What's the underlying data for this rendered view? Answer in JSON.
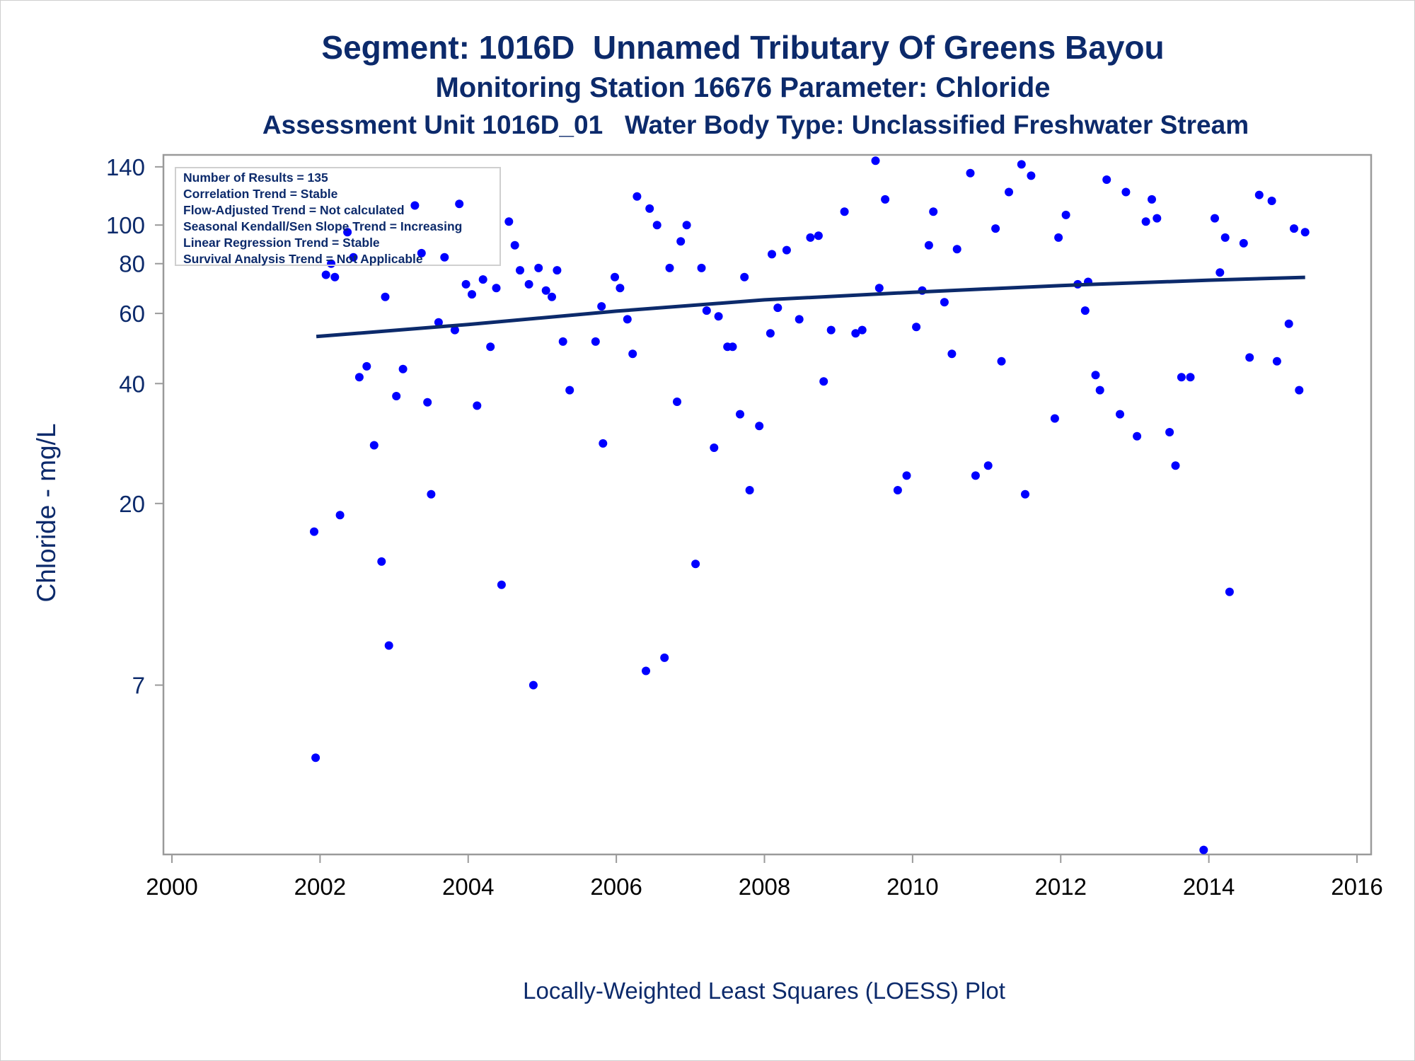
{
  "titles": {
    "line1": "Segment: 1016D  Unnamed Tributary Of Greens Bayou",
    "line2": "Monitoring Station 16676 Parameter: Chloride",
    "line3": "Assessment Unit 1016D_01   Water Body Type: Unclassified Freshwater Stream"
  },
  "stats": [
    "Number of Results = 135",
    "Correlation Trend = Stable",
    "Flow-Adjusted Trend = Not calculated",
    "Seasonal Kendall/Sen Slope Trend = Increasing",
    "Linear Regression Trend = Stable",
    "Survival Analysis Trend = Not Applicable"
  ],
  "footnote": "Locally-Weighted Least Squares (LOESS) Plot",
  "colors": {
    "text": "#0c2a6b",
    "points": "#0000ff",
    "trend": "#0c2a6b",
    "frame": "#9a9a9a"
  },
  "chart_data": {
    "type": "scatter",
    "title": "Segment: 1016D  Unnamed Tributary Of Greens Bayou",
    "xlabel": "",
    "ylabel": "Chloride - mg/L",
    "y_scale": "log",
    "xlim": [
      2000,
      2016.2
    ],
    "ylim": [
      2.63,
      150
    ],
    "x_ticks": [
      2000,
      2002,
      2004,
      2006,
      2008,
      2010,
      2012,
      2014,
      2016
    ],
    "y_ticks": [
      7,
      20,
      40,
      60,
      80,
      100,
      140
    ],
    "grid": false,
    "points": [
      [
        2001.92,
        17.0
      ],
      [
        2001.94,
        4.6
      ],
      [
        2002.08,
        75
      ],
      [
        2002.15,
        80
      ],
      [
        2002.2,
        74
      ],
      [
        2002.27,
        18.7
      ],
      [
        2002.37,
        96
      ],
      [
        2002.45,
        83
      ],
      [
        2002.53,
        41.5
      ],
      [
        2002.63,
        44.2
      ],
      [
        2002.73,
        28
      ],
      [
        2002.83,
        14.3
      ],
      [
        2002.88,
        66
      ],
      [
        2002.93,
        8.8
      ],
      [
        2003.03,
        37.2
      ],
      [
        2003.12,
        43.5
      ],
      [
        2003.28,
        112
      ],
      [
        2003.37,
        85
      ],
      [
        2003.45,
        35.9
      ],
      [
        2003.5,
        21.1
      ],
      [
        2003.6,
        57
      ],
      [
        2003.68,
        83
      ],
      [
        2003.82,
        54.5
      ],
      [
        2003.88,
        113
      ],
      [
        2003.97,
        71
      ],
      [
        2004.05,
        67
      ],
      [
        2004.12,
        35.2
      ],
      [
        2004.2,
        73
      ],
      [
        2004.3,
        49.5
      ],
      [
        2004.38,
        69.5
      ],
      [
        2004.45,
        12.5
      ],
      [
        2004.55,
        102
      ],
      [
        2004.63,
        89
      ],
      [
        2004.7,
        77
      ],
      [
        2004.82,
        71
      ],
      [
        2004.88,
        7.0
      ],
      [
        2004.95,
        78
      ],
      [
        2005.05,
        68.5
      ],
      [
        2005.13,
        66
      ],
      [
        2005.2,
        77
      ],
      [
        2005.28,
        51
      ],
      [
        2005.37,
        38.5
      ],
      [
        2005.72,
        51
      ],
      [
        2005.82,
        28.3
      ],
      [
        2005.8,
        62.5
      ],
      [
        2005.98,
        74
      ],
      [
        2006.05,
        69.5
      ],
      [
        2006.15,
        58
      ],
      [
        2006.22,
        47.5
      ],
      [
        2006.28,
        118
      ],
      [
        2006.4,
        7.6
      ],
      [
        2006.45,
        110
      ],
      [
        2006.55,
        100
      ],
      [
        2006.65,
        8.2
      ],
      [
        2006.72,
        78
      ],
      [
        2006.82,
        36
      ],
      [
        2006.87,
        91
      ],
      [
        2006.95,
        100
      ],
      [
        2007.07,
        14.1
      ],
      [
        2007.15,
        78
      ],
      [
        2007.22,
        61
      ],
      [
        2007.32,
        27.6
      ],
      [
        2007.38,
        59
      ],
      [
        2007.5,
        49.5
      ],
      [
        2007.57,
        49.5
      ],
      [
        2007.67,
        33.5
      ],
      [
        2007.73,
        74
      ],
      [
        2007.8,
        21.6
      ],
      [
        2007.93,
        31.3
      ],
      [
        2008.08,
        53.5
      ],
      [
        2008.1,
        84.5
      ],
      [
        2008.18,
        62
      ],
      [
        2008.3,
        86.5
      ],
      [
        2008.47,
        58
      ],
      [
        2008.62,
        93
      ],
      [
        2008.73,
        94
      ],
      [
        2008.8,
        40.5
      ],
      [
        2008.9,
        54.5
      ],
      [
        2009.08,
        108
      ],
      [
        2009.23,
        53.5
      ],
      [
        2009.32,
        54.5
      ],
      [
        2009.5,
        145
      ],
      [
        2009.55,
        69.5
      ],
      [
        2009.63,
        116
      ],
      [
        2009.8,
        21.6
      ],
      [
        2009.92,
        23.5
      ],
      [
        2010.05,
        55.5
      ],
      [
        2010.13,
        68.5
      ],
      [
        2010.22,
        89
      ],
      [
        2010.28,
        108
      ],
      [
        2010.43,
        64
      ],
      [
        2010.53,
        47.5
      ],
      [
        2010.6,
        87
      ],
      [
        2010.78,
        135
      ],
      [
        2010.85,
        23.5
      ],
      [
        2011.02,
        24.9
      ],
      [
        2011.12,
        98
      ],
      [
        2011.2,
        45.5
      ],
      [
        2011.3,
        121
      ],
      [
        2011.47,
        142
      ],
      [
        2011.52,
        21.1
      ],
      [
        2011.6,
        133
      ],
      [
        2011.92,
        32.7
      ],
      [
        2011.97,
        93
      ],
      [
        2012.07,
        106
      ],
      [
        2012.23,
        71
      ],
      [
        2012.33,
        61
      ],
      [
        2012.37,
        72
      ],
      [
        2012.47,
        42
      ],
      [
        2012.53,
        38.5
      ],
      [
        2012.62,
        130
      ],
      [
        2012.8,
        33.5
      ],
      [
        2012.88,
        121
      ],
      [
        2013.03,
        29.5
      ],
      [
        2013.15,
        102
      ],
      [
        2013.23,
        116
      ],
      [
        2013.3,
        104
      ],
      [
        2013.47,
        30.2
      ],
      [
        2013.55,
        24.9
      ],
      [
        2013.63,
        41.5
      ],
      [
        2013.75,
        41.5
      ],
      [
        2013.93,
        2.7
      ],
      [
        2014.08,
        104
      ],
      [
        2014.15,
        76
      ],
      [
        2014.22,
        93
      ],
      [
        2014.28,
        12.0
      ],
      [
        2014.47,
        90
      ],
      [
        2014.55,
        46.5
      ],
      [
        2014.68,
        119
      ],
      [
        2014.85,
        115
      ],
      [
        2014.92,
        45.5
      ],
      [
        2015.08,
        56.5
      ],
      [
        2015.15,
        98
      ],
      [
        2015.22,
        38.5
      ],
      [
        2015.3,
        96
      ]
    ],
    "trend": [
      [
        2001.95,
        52.5
      ],
      [
        2004.0,
        56.3
      ],
      [
        2006.0,
        60.8
      ],
      [
        2008.0,
        64.9
      ],
      [
        2010.0,
        67.8
      ],
      [
        2012.0,
        70.5
      ],
      [
        2014.0,
        72.7
      ],
      [
        2015.3,
        73.9
      ]
    ]
  }
}
